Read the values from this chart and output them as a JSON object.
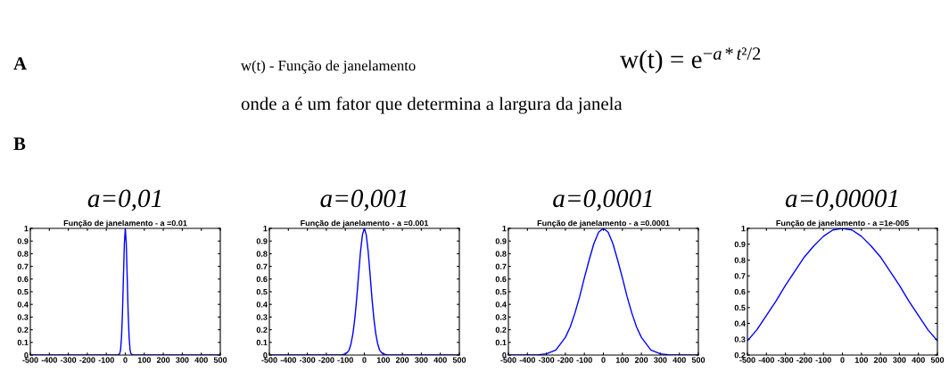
{
  "chart_data": [
    {
      "type": "line",
      "title": "a=0,01",
      "subtitle": "Função de janelamento - a =0.01",
      "annotations": [
        "A",
        "w(t) - Função de janelamento",
        "w(t) = e$^{−a*t²/2}$",
        "onde a é um fator que determina a largura da janela",
        "B"
      ],
      "series": [
        {
          "color": "#0000ff",
          "x": [
            -500,
            -40,
            -30,
            -25,
            -20,
            -15,
            -10,
            -5,
            0,
            5,
            10,
            15,
            20,
            25,
            30,
            40,
            500
          ],
          "values": [
            0,
            0,
            0.01,
            0.04,
            0.14,
            0.33,
            0.61,
            0.88,
            1,
            0.88,
            0.61,
            0.33,
            0.14,
            0.04,
            0.01,
            0,
            0
          ]
        }
      ],
      "xlim": [
        -500,
        500
      ],
      "ylim": [
        0,
        1
      ],
      "xticks": [
        -500,
        -400,
        -300,
        -200,
        -100,
        0,
        100,
        200,
        300,
        400,
        500
      ],
      "yticks": [
        0,
        0.1,
        0.2,
        0.3,
        0.4,
        0.5,
        0.6,
        0.7,
        0.8,
        0.9,
        1
      ],
      "grid": false,
      "legend": false,
      "line_style": "solid"
    },
    {
      "type": "line",
      "title": "a=0,001",
      "subtitle": "Função de janelamento - a =0.001",
      "series": [
        {
          "color": "#0000ff",
          "x": [
            -500,
            -120,
            -100,
            -90,
            -80,
            -70,
            -60,
            -50,
            -40,
            -30,
            -20,
            -10,
            0,
            10,
            20,
            30,
            40,
            50,
            60,
            70,
            80,
            90,
            100,
            120,
            500
          ],
          "values": [
            0,
            0,
            0.01,
            0.02,
            0.04,
            0.09,
            0.17,
            0.29,
            0.45,
            0.64,
            0.82,
            0.95,
            1,
            0.95,
            0.82,
            0.64,
            0.45,
            0.29,
            0.17,
            0.09,
            0.04,
            0.02,
            0.01,
            0,
            0
          ]
        }
      ],
      "xlim": [
        -500,
        500
      ],
      "ylim": [
        0,
        1
      ],
      "xticks": [
        -500,
        -400,
        -300,
        -200,
        -100,
        0,
        100,
        200,
        300,
        400,
        500
      ],
      "yticks": [
        0,
        0.1,
        0.2,
        0.3,
        0.4,
        0.5,
        0.6,
        0.7,
        0.8,
        0.9,
        1
      ],
      "grid": false,
      "legend": false,
      "line_style": "solid"
    },
    {
      "type": "line",
      "title": "a=0,0001",
      "subtitle": "Função de janelamento - a =0.0001",
      "series": [
        {
          "color": "#0000ff",
          "x": [
            -500,
            -400,
            -350,
            -300,
            -250,
            -200,
            -175,
            -150,
            -125,
            -100,
            -75,
            -50,
            -25,
            0,
            25,
            50,
            75,
            100,
            125,
            150,
            175,
            200,
            250,
            300,
            350,
            400,
            500
          ],
          "values": [
            0,
            0,
            0,
            0.01,
            0.04,
            0.14,
            0.22,
            0.33,
            0.46,
            0.61,
            0.75,
            0.88,
            0.97,
            1,
            0.97,
            0.88,
            0.75,
            0.61,
            0.46,
            0.33,
            0.22,
            0.14,
            0.04,
            0.01,
            0,
            0,
            0
          ]
        }
      ],
      "xlim": [
        -500,
        500
      ],
      "ylim": [
        0,
        1
      ],
      "xticks": [
        -500,
        -400,
        -300,
        -200,
        -100,
        0,
        100,
        200,
        300,
        400,
        500
      ],
      "yticks": [
        0,
        0.1,
        0.2,
        0.3,
        0.4,
        0.5,
        0.6,
        0.7,
        0.8,
        0.9,
        1
      ],
      "grid": false,
      "legend": false,
      "line_style": "solid"
    },
    {
      "type": "line",
      "title": "a=0,00001",
      "subtitle": "Função de janelamento - a =1e-005",
      "series": [
        {
          "color": "#0000ff",
          "x": [
            -500,
            -450,
            -400,
            -350,
            -300,
            -250,
            -200,
            -150,
            -100,
            -50,
            0,
            50,
            100,
            150,
            200,
            250,
            300,
            350,
            400,
            450,
            500
          ],
          "values": [
            0.29,
            0.36,
            0.45,
            0.54,
            0.64,
            0.73,
            0.82,
            0.89,
            0.95,
            0.99,
            1,
            0.99,
            0.95,
            0.89,
            0.82,
            0.73,
            0.64,
            0.54,
            0.45,
            0.36,
            0.29
          ]
        }
      ],
      "xlim": [
        -500,
        500
      ],
      "ylim": [
        0.2,
        1
      ],
      "xticks": [
        -500,
        -400,
        -300,
        -200,
        -100,
        0,
        100,
        200,
        300,
        400,
        500
      ],
      "yticks": [
        0.2,
        0.3,
        0.4,
        0.5,
        0.6,
        0.7,
        0.8,
        0.9,
        1
      ],
      "grid": false,
      "legend": false,
      "line_style": "solid"
    }
  ]
}
